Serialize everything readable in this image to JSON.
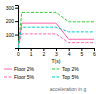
{
  "chart_data": {
    "type": "line",
    "xlabel": "T(s)",
    "annotation": "acceleration in g",
    "x": [
      0,
      0.3,
      0.8,
      3.0,
      4.0,
      6.0
    ],
    "series": [
      {
        "name": "Floor 2%",
        "color": "#ff66aa",
        "line_style": "solid",
        "values": [
          0,
          185,
          185,
          185,
          65,
          65
        ]
      },
      {
        "name": "Floor 5%",
        "color": "#ff66aa",
        "line_style": "dashed",
        "values": [
          0,
          105,
          105,
          105,
          40,
          40
        ]
      },
      {
        "name": "Top 2%",
        "color": "#33cc33",
        "line_style": "dashed",
        "values": [
          0,
          265,
          265,
          265,
          195,
          195
        ]
      },
      {
        "name": "Top 5%",
        "color": "#00cccc",
        "line_style": "dashed",
        "values": [
          0,
          155,
          155,
          155,
          120,
          120
        ]
      }
    ],
    "xlim": [
      0,
      6
    ],
    "xticks": [
      0,
      1,
      2,
      3,
      4,
      5,
      6
    ],
    "ylim": [
      0,
      320
    ],
    "yticks": [
      100,
      200,
      300
    ],
    "grid": false,
    "legend": "bottom"
  }
}
